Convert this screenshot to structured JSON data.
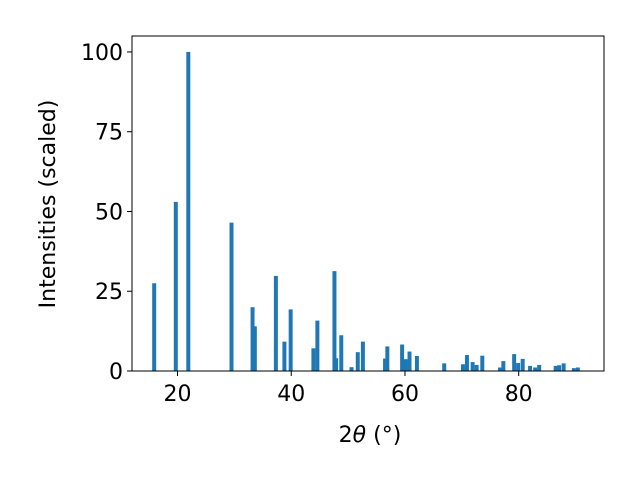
{
  "chart_data": {
    "type": "bar",
    "title": "",
    "xlabel_main": "2",
    "xlabel_symbol": "θ",
    "xlabel_unit": " (°)",
    "ylabel": "Intensities (scaled)",
    "xlim": [
      12,
      95
    ],
    "ylim": [
      0,
      105
    ],
    "xticks": [
      20,
      40,
      60,
      80
    ],
    "yticks": [
      0,
      25,
      50,
      75,
      100
    ],
    "bar_width": 0.7,
    "grid": false,
    "legend": "none",
    "color": "#1f77b4",
    "x": [
      15.9,
      19.7,
      21.9,
      29.5,
      33.2,
      33.6,
      37.3,
      38.8,
      39.9,
      43.9,
      44.6,
      47.6,
      47.9,
      48.8,
      50.6,
      51.7,
      52.6,
      56.5,
      56.9,
      59.5,
      60.1,
      60.8,
      62.1,
      66.9,
      70.2,
      70.9,
      71.9,
      72.6,
      73.6,
      76.7,
      77.3,
      79.2,
      79.9,
      80.7,
      82.0,
      82.9,
      83.6,
      86.5,
      87.1,
      87.9,
      89.7,
      90.4
    ],
    "values": [
      27.5,
      53,
      100,
      46.5,
      20,
      14,
      29.8,
      9.2,
      19.3,
      7.1,
      15.8,
      31.3,
      4,
      11.2,
      1.2,
      5.9,
      9.2,
      3.9,
      7.7,
      8.3,
      3.7,
      6.1,
      4.7,
      2.4,
      2.1,
      5,
      2.8,
      1.9,
      4.8,
      1.1,
      3.1,
      5.3,
      2.5,
      3.8,
      1.6,
      1.1,
      1.9,
      1.6,
      1.8,
      2.4,
      0.9,
      1.1
    ]
  }
}
